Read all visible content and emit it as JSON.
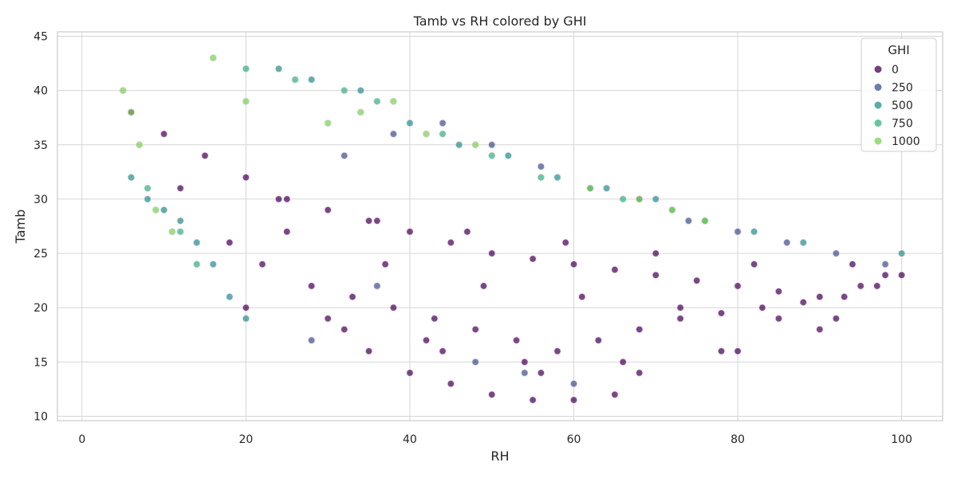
{
  "chart_data": {
    "type": "scatter",
    "title": "Tamb vs RH colored by GHI",
    "xlabel": "RH",
    "ylabel": "Tamb",
    "xlim": [
      -3,
      105
    ],
    "ylim": [
      9.6,
      45.4
    ],
    "x_ticks": [
      0,
      20,
      40,
      60,
      80,
      100
    ],
    "y_ticks": [
      10,
      15,
      20,
      25,
      30,
      35,
      40,
      45
    ],
    "grid": true,
    "hue": "GHI",
    "legend": {
      "title": "GHI",
      "placement": "top-right",
      "entries": [
        {
          "label": "0",
          "color": "#440154"
        },
        {
          "label": "250",
          "color": "#3b528b"
        },
        {
          "label": "500",
          "color": "#21918c"
        },
        {
          "label": "750",
          "color": "#2fb47c"
        },
        {
          "label": "1000",
          "color": "#7ad151"
        }
      ]
    },
    "series": [
      {
        "hue_value": 0,
        "color": "#440154",
        "x": [
          6,
          10,
          15,
          20,
          25,
          30,
          35,
          40,
          45,
          50,
          55,
          60,
          65,
          70,
          75,
          80,
          85,
          90,
          95,
          100,
          18,
          22,
          28,
          33,
          38,
          43,
          48,
          53,
          58,
          63,
          68,
          73,
          78,
          83,
          88,
          93,
          98,
          12,
          24,
          36,
          47,
          59,
          70,
          82,
          94,
          30,
          42,
          54,
          66,
          78,
          90,
          25,
          37,
          49,
          61,
          73,
          85,
          97,
          20,
          32,
          44,
          56,
          68,
          80,
          92,
          45,
          50,
          55,
          60,
          65,
          40,
          35
        ],
        "y": [
          38,
          36,
          34,
          32,
          30,
          29,
          28,
          27,
          26,
          25,
          24.5,
          24,
          23.5,
          23,
          22.5,
          22,
          21.5,
          21,
          22,
          23,
          26,
          24,
          22,
          21,
          20,
          19,
          18,
          17,
          16,
          17,
          18,
          19,
          19.5,
          20,
          20.5,
          21,
          23,
          31,
          30,
          28,
          27,
          26,
          25,
          24,
          24,
          19,
          17,
          15,
          15,
          16,
          18,
          27,
          24,
          22,
          21,
          20,
          19,
          22,
          20,
          18,
          16,
          14,
          14,
          16,
          19,
          13,
          12,
          11.5,
          11.5,
          12,
          14,
          16
        ]
      },
      {
        "hue_value": 250,
        "color": "#3b528b",
        "x": [
          32,
          38,
          44,
          50,
          56,
          62,
          68,
          74,
          80,
          86,
          92,
          98,
          48,
          54,
          60,
          28,
          36
        ],
        "y": [
          34,
          36,
          37,
          35,
          33,
          31,
          30,
          28,
          27,
          26,
          25,
          24,
          15,
          14,
          13,
          17,
          22
        ]
      },
      {
        "hue_value": 500,
        "color": "#21918c",
        "x": [
          6,
          8,
          10,
          12,
          14,
          16,
          18,
          20,
          24,
          28,
          34,
          40,
          46,
          52,
          58,
          64,
          70,
          76,
          82,
          88,
          100
        ],
        "y": [
          32,
          30,
          29,
          28,
          26,
          24,
          21,
          19,
          42,
          41,
          40,
          37,
          35,
          34,
          32,
          31,
          30,
          28,
          27,
          26,
          25
        ]
      },
      {
        "hue_value": 750,
        "color": "#2fb47c",
        "x": [
          8,
          12,
          14,
          20,
          26,
          32,
          36,
          44,
          50,
          56,
          62,
          66,
          72,
          76
        ],
        "y": [
          31,
          27,
          24,
          42,
          41,
          40,
          39,
          36,
          34,
          32,
          31,
          30,
          29,
          28
        ]
      },
      {
        "hue_value": 1000,
        "color": "#7ad151",
        "x": [
          5,
          6,
          7,
          9,
          11,
          16,
          20,
          30,
          34,
          38,
          42,
          48,
          62,
          68,
          72,
          76
        ],
        "y": [
          40,
          38,
          35,
          29,
          27,
          43,
          39,
          37,
          38,
          39,
          36,
          35,
          31,
          30,
          29,
          28
        ]
      }
    ]
  }
}
